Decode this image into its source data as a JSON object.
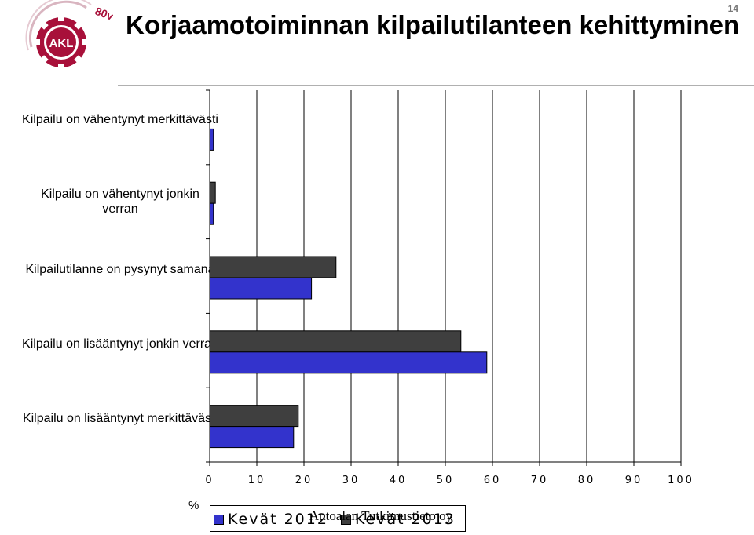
{
  "header": {
    "title": "Korjaamotoiminnan kilpailutilanteen kehittyminen",
    "page_number": "14",
    "logo_text": "AKL",
    "logo_badge": "80v"
  },
  "footer": {
    "text": "Autoalan Tutkimustieto oy"
  },
  "colors": {
    "kevat_2012": "#3333cc",
    "kevat_2013": "#3f3f3f",
    "gridline": "#000000"
  },
  "chart_data": {
    "type": "bar",
    "orientation": "horizontal",
    "categories": [
      "Kilpailu on vähentynyt merkittävästi",
      "Kilpailu on vähentynyt jonkin verran",
      "Kilpailutilanne on pysynyt samana",
      "Kilpailu on lisääntynyt jonkin verran",
      "Kilpailu on lisääntynyt merkittävästi"
    ],
    "series": [
      {
        "name": "Kevät 2013",
        "values": [
          0,
          1.2,
          26.8,
          53.3,
          18.8
        ]
      },
      {
        "name": "Kevät 2012",
        "values": [
          0.8,
          0.8,
          21.6,
          58.8,
          17.8
        ]
      }
    ],
    "xlim": [
      0,
      100
    ],
    "xticks": [
      "0",
      "10",
      "20",
      "30",
      "40",
      "50",
      "60",
      "70",
      "80",
      "90",
      "100"
    ],
    "xlabel": "%",
    "ylabel": "",
    "grid": true,
    "legend": {
      "position": "bottom",
      "items": [
        {
          "label": "Kevät 2012"
        },
        {
          "label": "Kevät 2013"
        }
      ]
    }
  }
}
